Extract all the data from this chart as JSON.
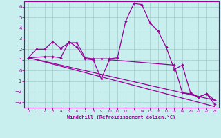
{
  "line1_x": [
    0,
    1,
    2,
    3,
    4,
    5,
    6,
    7,
    8,
    9,
    10,
    11,
    12,
    13,
    14,
    15,
    16,
    17,
    18,
    19,
    20,
    21,
    22,
    23
  ],
  "line1_y": [
    1.2,
    2.0,
    2.0,
    2.7,
    2.1,
    2.6,
    2.6,
    1.2,
    1.1,
    1.1,
    1.1,
    1.2,
    4.6,
    6.3,
    6.2,
    4.5,
    3.7,
    2.2,
    0.1,
    0.5,
    -2.1,
    -2.5,
    -2.2,
    -3.2
  ],
  "line2_x": [
    0,
    2,
    3,
    4,
    5,
    6,
    7,
    8,
    9,
    10,
    18,
    19,
    20,
    21,
    22,
    23
  ],
  "line2_y": [
    1.2,
    1.3,
    1.3,
    1.2,
    2.7,
    2.2,
    1.1,
    1.0,
    -0.8,
    1.0,
    0.5,
    -2.1,
    -2.2,
    -2.5,
    -2.2,
    -2.8
  ],
  "line3_x": [
    0,
    23
  ],
  "line3_y": [
    1.2,
    -3.4
  ],
  "line4_x": [
    0,
    23
  ],
  "line4_y": [
    1.2,
    -2.8
  ],
  "color": "#990099",
  "bg_color": "#c8eeed",
  "grid_color": "#a0cccc",
  "xlabel": "Windchill (Refroidissement éolien,°C)",
  "xlim": [
    0,
    23
  ],
  "ylim": [
    -3.5,
    6.5
  ],
  "yticks": [
    -3,
    -2,
    -1,
    0,
    1,
    2,
    3,
    4,
    5,
    6
  ],
  "xticks": [
    0,
    1,
    2,
    3,
    4,
    5,
    6,
    7,
    8,
    9,
    10,
    11,
    12,
    13,
    14,
    15,
    16,
    17,
    18,
    19,
    20,
    21,
    22,
    23
  ],
  "marker": "D",
  "markersize": 2.2,
  "linewidth": 0.9
}
